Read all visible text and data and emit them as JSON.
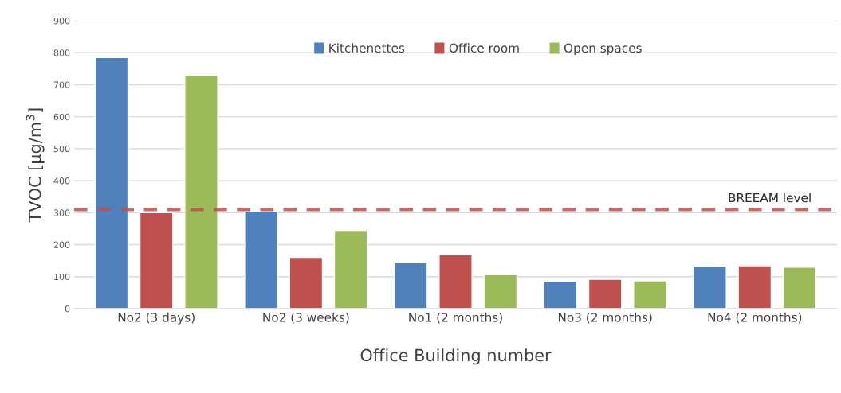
{
  "chart_data": {
    "type": "bar",
    "xlabel": "Office Building number",
    "ylabel": "TVOC [μg/m$^{3}$]",
    "categories": [
      "No2 (3 days)",
      "No2 (3 weeks)",
      "No1 (2 months)",
      "No3 (2 months)",
      "No4 (2 months)"
    ],
    "series": [
      {
        "name": "Kitchenettes",
        "color": "#4f81bd",
        "values": [
          785,
          305,
          144,
          86,
          133
        ]
      },
      {
        "name": "Office room",
        "color": "#c0504d",
        "values": [
          300,
          160,
          169,
          92,
          134
        ]
      },
      {
        "name": "Open spaces",
        "color": "#9bbb59",
        "values": [
          730,
          245,
          106,
          87,
          130
        ]
      }
    ],
    "ylim": [
      0,
      900
    ],
    "yticks": [
      0,
      100,
      200,
      300,
      400,
      500,
      600,
      700,
      800,
      900
    ],
    "ref_lines": [
      {
        "axis": "y",
        "value": 310,
        "label": "BREEAM level",
        "color": "#c0504d",
        "line_style": "dashed"
      }
    ],
    "grid": "y",
    "legend": "top"
  }
}
